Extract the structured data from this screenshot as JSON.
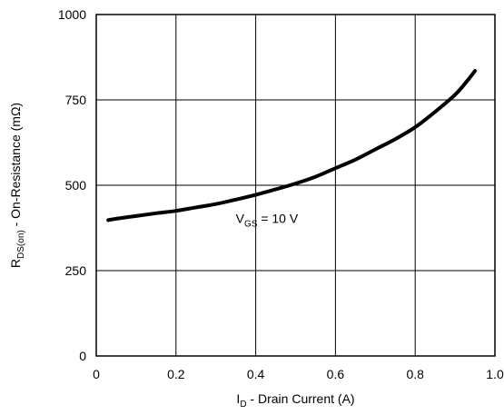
{
  "chart_data": {
    "type": "line",
    "xlabel": {
      "main": "I",
      "sub": "D",
      "rest": " - Drain Current (A)"
    },
    "ylabel": {
      "main": "R",
      "sub": "DS(on)",
      "rest": " - On-Resistance (mΩ)"
    },
    "xlim": [
      0,
      1.0
    ],
    "ylim": [
      0,
      1000
    ],
    "xticks": [
      0,
      0.2,
      0.4,
      0.6,
      0.8,
      1.0
    ],
    "xtick_labels": [
      "0",
      "0.2",
      "0.4",
      "0.6",
      "0.8",
      "1.0"
    ],
    "yticks": [
      0,
      250,
      500,
      750,
      1000
    ],
    "ytick_labels": [
      "0",
      "250",
      "500",
      "750",
      "1000"
    ],
    "grid": true,
    "annotation": {
      "main": "V",
      "sub": "GS",
      "rest": " = 10 V",
      "x": 0.35,
      "y": 390
    },
    "series": [
      {
        "x": [
          0.03,
          0.05,
          0.1,
          0.15,
          0.2,
          0.25,
          0.3,
          0.35,
          0.4,
          0.45,
          0.5,
          0.55,
          0.6,
          0.65,
          0.7,
          0.75,
          0.8,
          0.85,
          0.9,
          0.93,
          0.95
        ],
        "y": [
          398,
          402,
          410,
          418,
          425,
          435,
          445,
          458,
          472,
          488,
          505,
          525,
          550,
          575,
          605,
          635,
          670,
          715,
          765,
          805,
          835
        ]
      }
    ]
  }
}
